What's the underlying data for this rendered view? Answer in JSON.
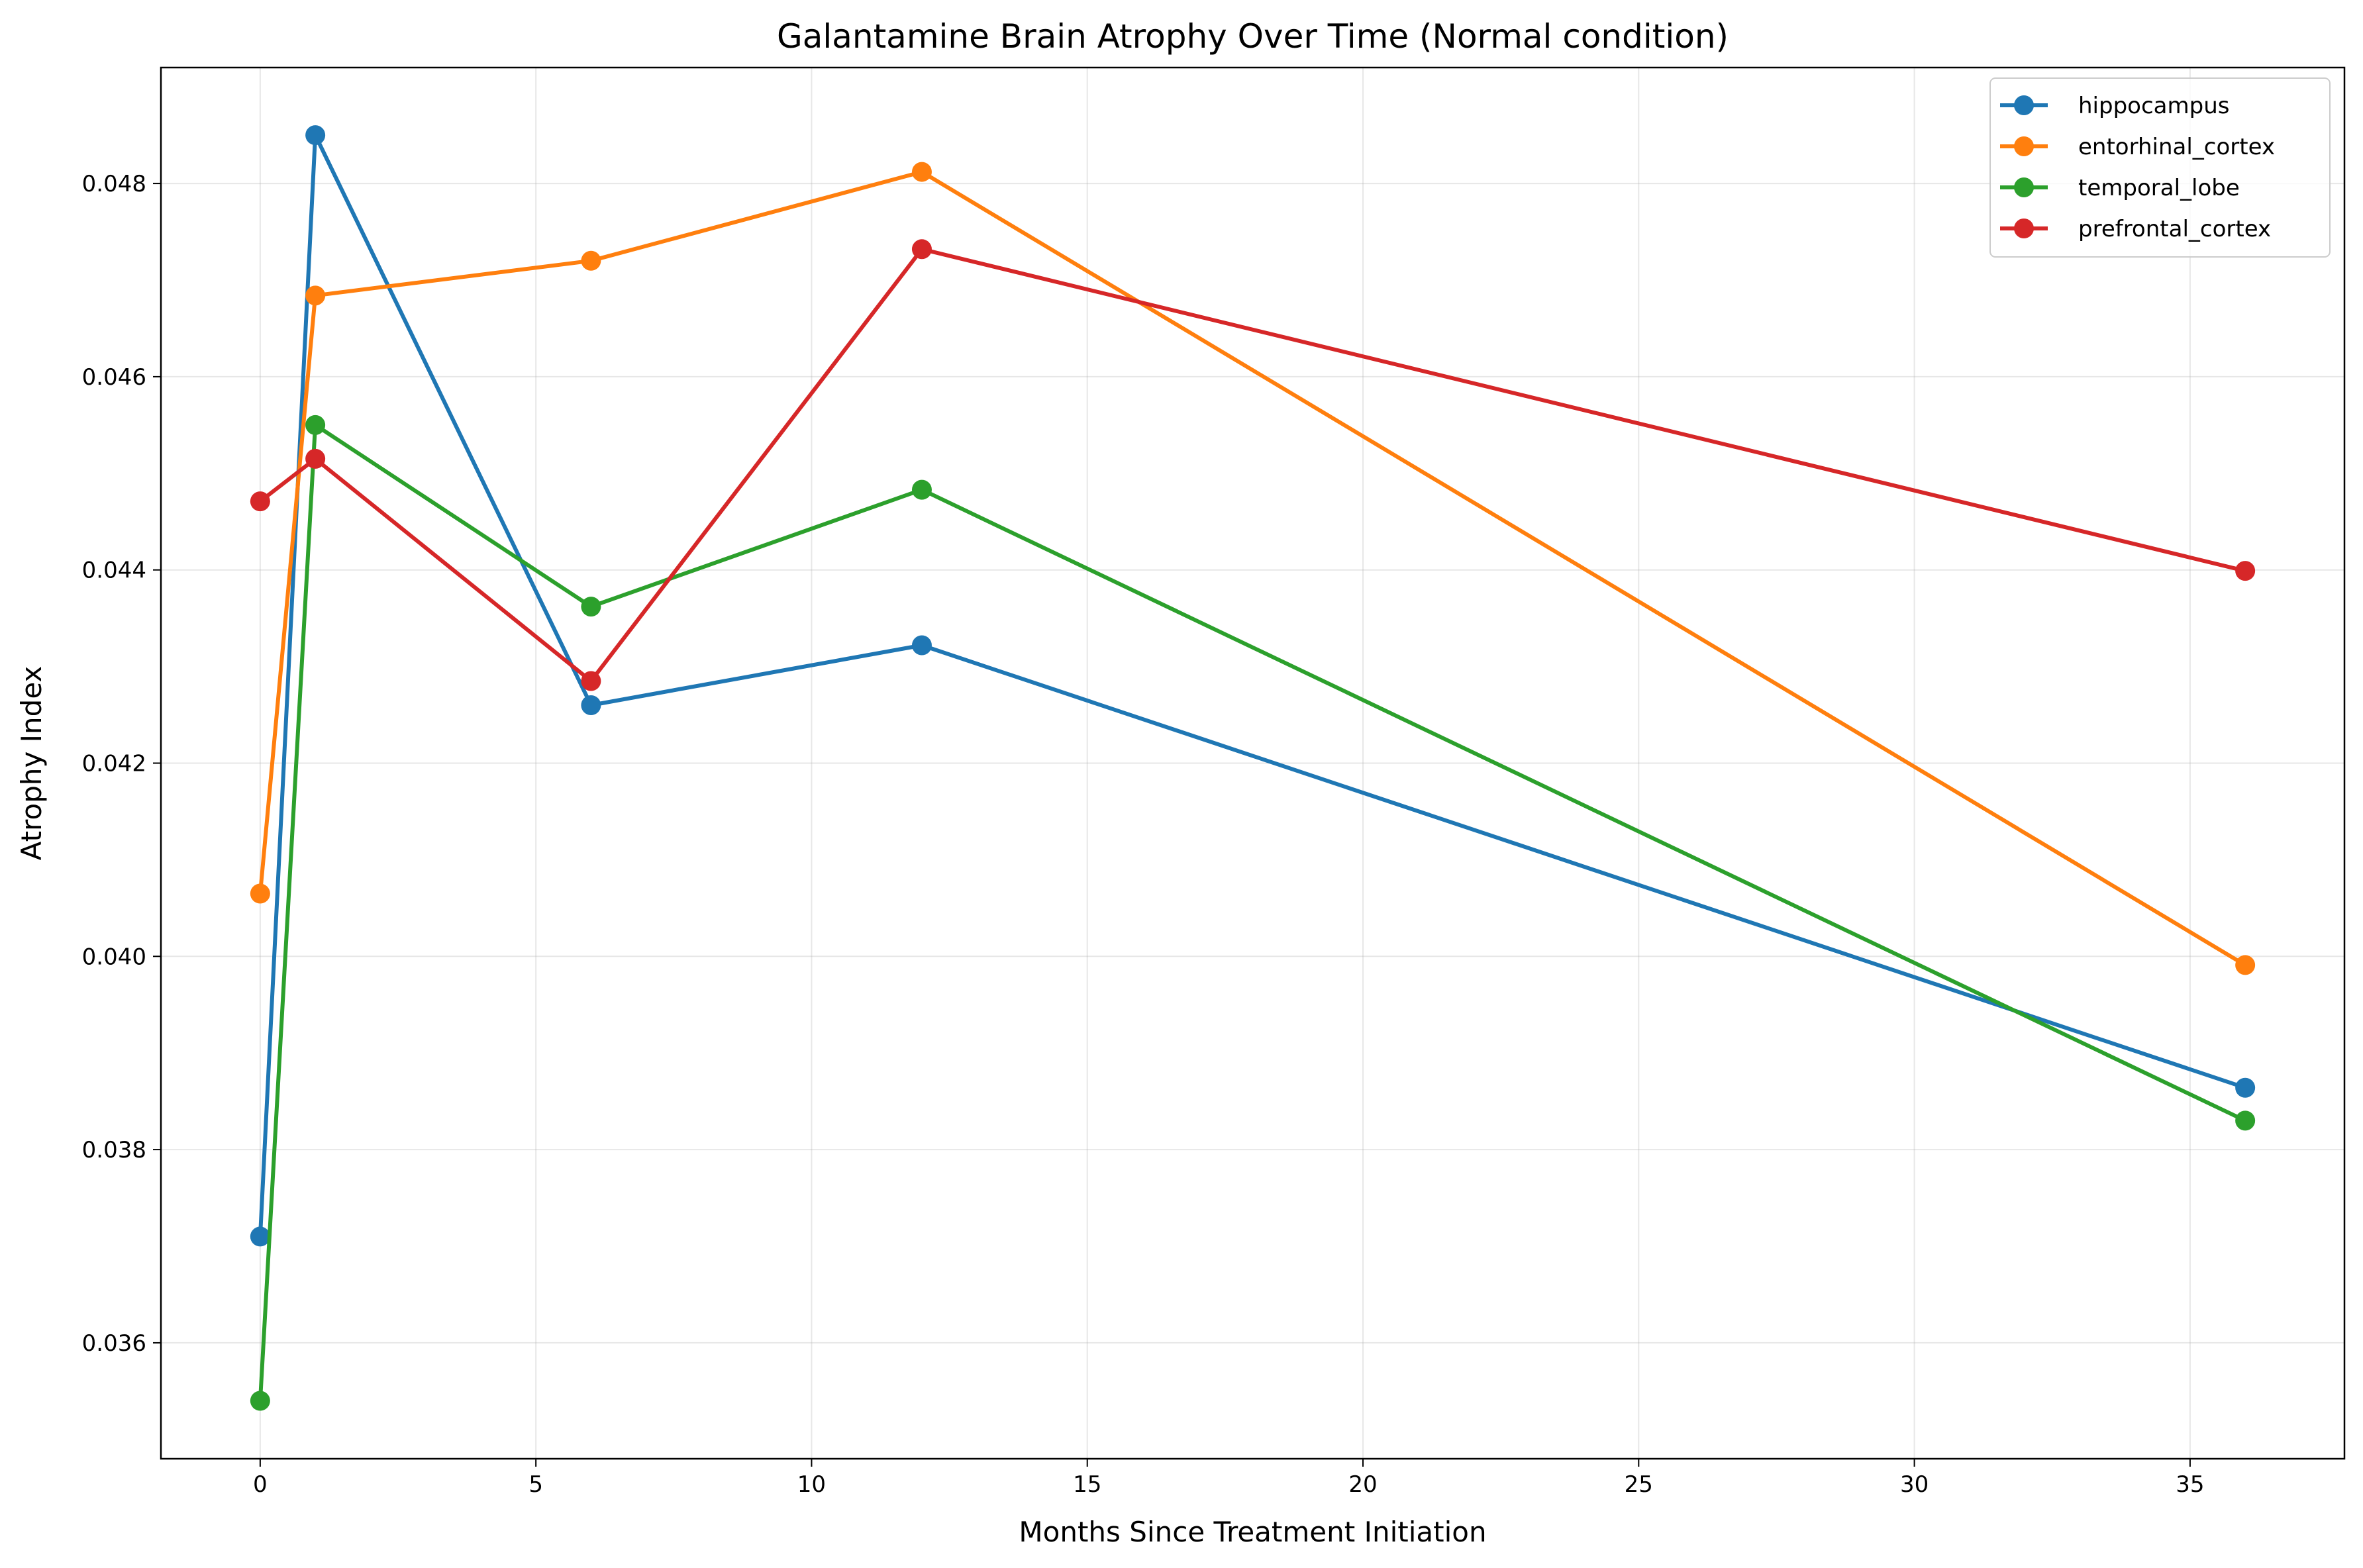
{
  "chart_data": {
    "type": "line",
    "title": "Galantamine Brain Atrophy Over Time (Normal condition)",
    "xlabel": "Months Since Treatment Initiation",
    "ylabel": "Atrophy Index",
    "x": [
      0,
      1,
      6,
      12,
      36
    ],
    "xlim": [
      -1.8,
      37.8
    ],
    "ylim": [
      0.0348,
      0.0492
    ],
    "xticks": [
      0,
      5,
      10,
      15,
      20,
      25,
      30,
      35
    ],
    "yticks": [
      0.036,
      0.038,
      0.04,
      0.042,
      0.044,
      0.046,
      0.048
    ],
    "xtick_labels": [
      "0",
      "5",
      "10",
      "15",
      "20",
      "25",
      "30",
      "35"
    ],
    "ytick_labels": [
      "0.036",
      "0.038",
      "0.040",
      "0.042",
      "0.044",
      "0.046",
      "0.048"
    ],
    "grid": true,
    "legend_position": "top-right",
    "series": [
      {
        "name": "hippocampus",
        "color": "#1f77b4",
        "values": [
          0.0371,
          0.0485,
          0.0426,
          0.04322,
          0.03864
        ]
      },
      {
        "name": "entorhinal_cortex",
        "color": "#ff7f0e",
        "values": [
          0.04065,
          0.04684,
          0.0472,
          0.04812,
          0.03991
        ]
      },
      {
        "name": "temporal_lobe",
        "color": "#2ca02c",
        "values": [
          0.0354,
          0.0455,
          0.04362,
          0.04483,
          0.0383
        ]
      },
      {
        "name": "prefrontal_cortex",
        "color": "#d62728",
        "values": [
          0.04471,
          0.04515,
          0.04285,
          0.04732,
          0.04399
        ]
      }
    ]
  }
}
